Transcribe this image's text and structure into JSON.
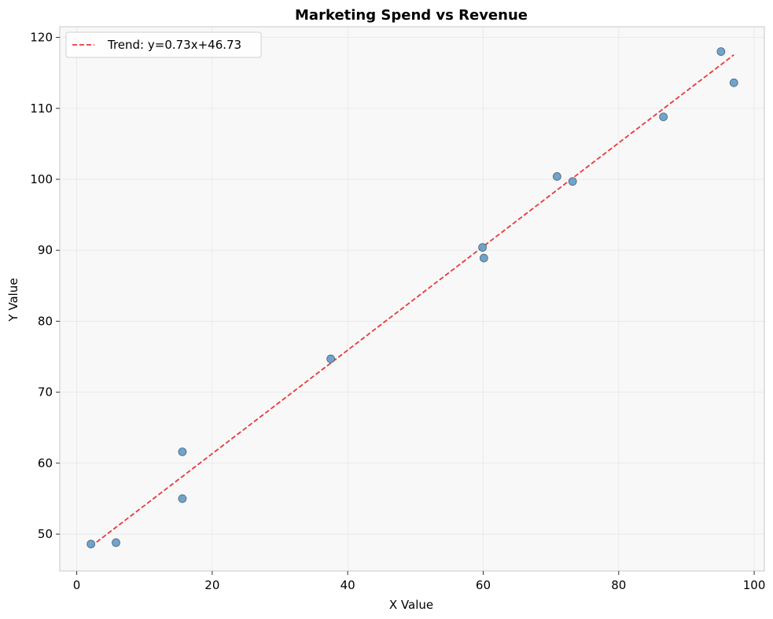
{
  "chart_data": {
    "type": "scatter",
    "title": "Marketing Spend vs Revenue",
    "xlabel": "X Value",
    "ylabel": "Y Value",
    "xlim": [
      -2.5,
      101.5
    ],
    "ylim": [
      44.8,
      121.5
    ],
    "xticks": [
      0,
      20,
      40,
      60,
      80,
      100
    ],
    "yticks": [
      50,
      60,
      70,
      80,
      90,
      100,
      110,
      120
    ],
    "grid": true,
    "legend_position": "top-left",
    "points": [
      {
        "x": 2.1,
        "y": 48.6
      },
      {
        "x": 5.8,
        "y": 48.8
      },
      {
        "x": 15.6,
        "y": 61.6
      },
      {
        "x": 15.6,
        "y": 55.0
      },
      {
        "x": 37.5,
        "y": 74.7
      },
      {
        "x": 59.9,
        "y": 90.4
      },
      {
        "x": 60.1,
        "y": 88.9
      },
      {
        "x": 70.9,
        "y": 100.4
      },
      {
        "x": 73.2,
        "y": 99.7
      },
      {
        "x": 86.6,
        "y": 108.8
      },
      {
        "x": 95.1,
        "y": 118.0
      },
      {
        "x": 97.0,
        "y": 113.6
      }
    ],
    "trend": {
      "label": "Trend: y=0.73x+46.73",
      "slope": 0.73,
      "intercept": 46.73,
      "x_start": 2.1,
      "x_end": 97.0
    },
    "colors": {
      "points": "#6a9ec6",
      "point_edge": "#3b5a75",
      "trend": "#e8393a",
      "plot_bg": "#f8f8f8",
      "grid": "#e6e6e6",
      "frame": "#c8c8c8"
    }
  }
}
